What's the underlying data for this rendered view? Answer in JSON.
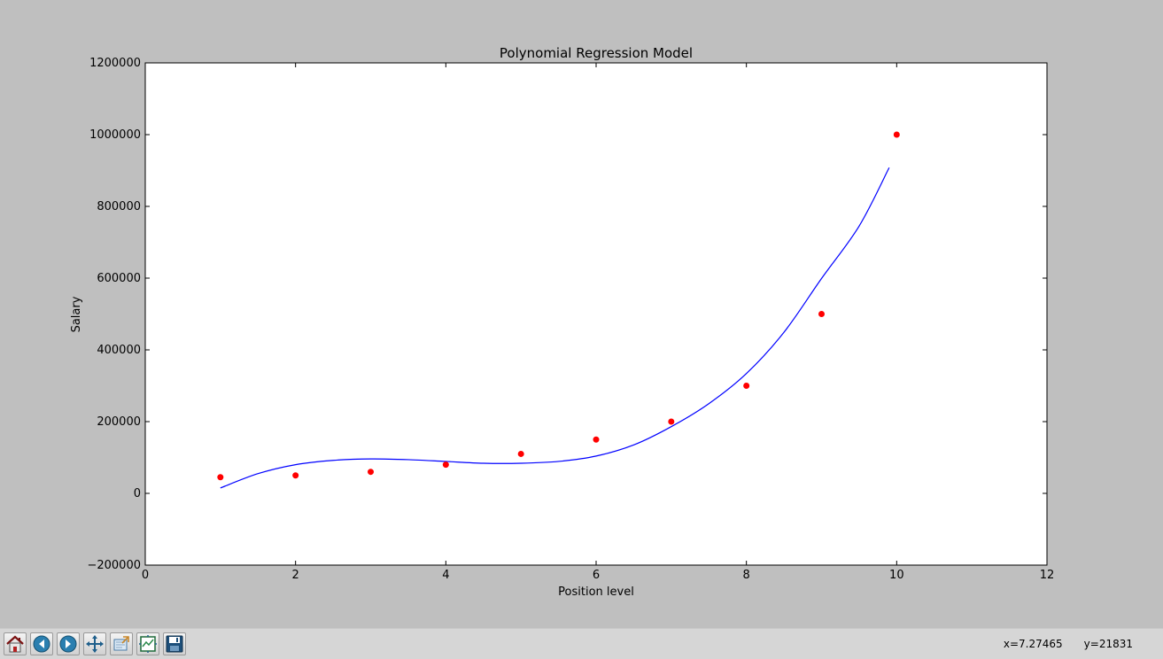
{
  "chart_data": {
    "type": "scatter",
    "title": "Polynomial Regression Model",
    "xlabel": "Position level",
    "ylabel": "Salary",
    "xlim": [
      0,
      12
    ],
    "ylim": [
      -200000,
      1200000
    ],
    "xticks": [
      0,
      2,
      4,
      6,
      8,
      10,
      12
    ],
    "yticks": [
      -200000,
      0,
      200000,
      400000,
      600000,
      800000,
      1000000,
      1200000
    ],
    "grid": false,
    "series": [
      {
        "kind": "scatter",
        "color": "#ff0000",
        "x": [
          1,
          2,
          3,
          4,
          5,
          6,
          7,
          8,
          9,
          10
        ],
        "y": [
          45000,
          50000,
          60000,
          80000,
          110000,
          150000,
          200000,
          300000,
          500000,
          1000000
        ]
      },
      {
        "kind": "line",
        "color": "#0000ff",
        "x": [
          1,
          1.5,
          2,
          2.5,
          3,
          3.5,
          4,
          4.5,
          5,
          5.5,
          6,
          6.5,
          7,
          7.5,
          8,
          8.5,
          9,
          9.5,
          9.9
        ],
        "y": [
          15000,
          55000,
          80000,
          92000,
          96000,
          94000,
          89000,
          84000,
          84000,
          89000,
          104000,
          135000,
          186000,
          250000,
          334000,
          449000,
          599000,
          745000,
          908000
        ]
      }
    ]
  },
  "toolbar": {
    "buttons": [
      {
        "name": "home-button",
        "icon": "home-icon"
      },
      {
        "name": "back-button",
        "icon": "back-arrow-icon"
      },
      {
        "name": "forward-button",
        "icon": "forward-arrow-icon"
      },
      {
        "name": "pan-button",
        "icon": "pan-arrows-icon"
      },
      {
        "name": "zoom-button",
        "icon": "zoom-rect-icon"
      },
      {
        "name": "subplots-button",
        "icon": "subplots-icon"
      },
      {
        "name": "save-button",
        "icon": "floppy-disk-icon"
      }
    ],
    "coord_x": "x=7.27465",
    "coord_y": "y=21831"
  }
}
